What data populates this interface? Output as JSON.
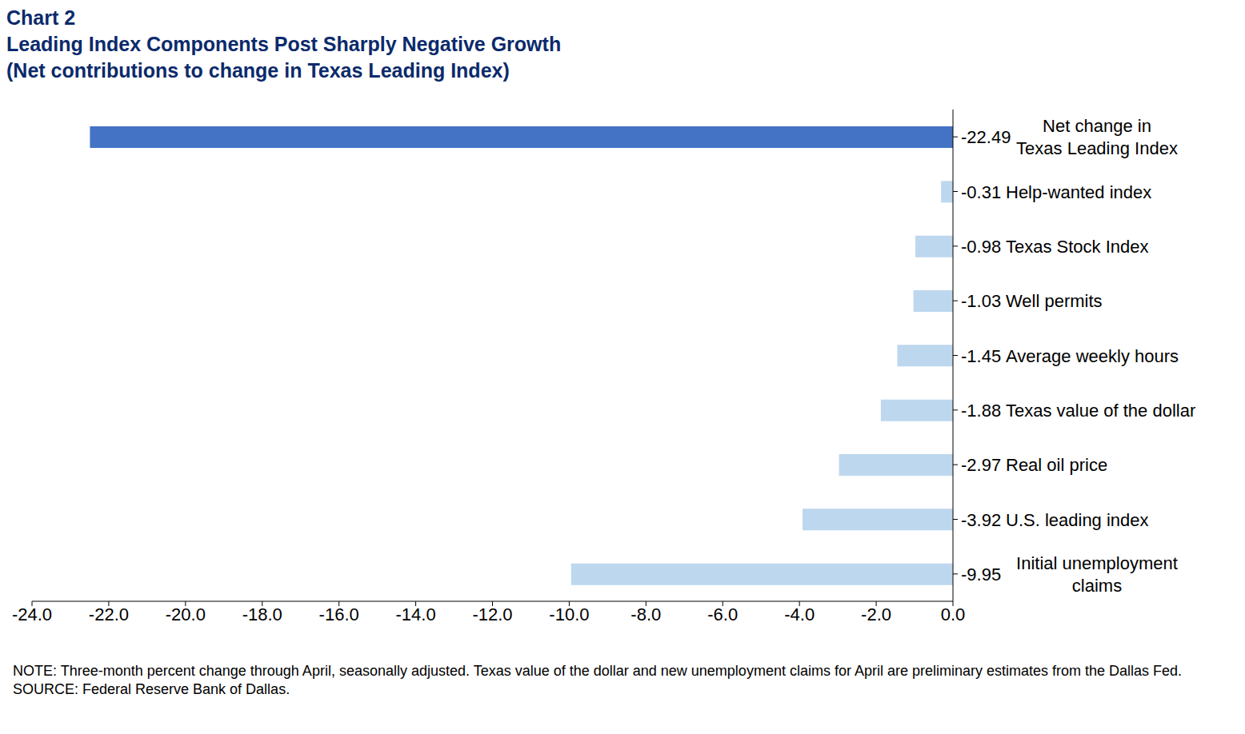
{
  "chart_data": {
    "type": "bar",
    "orientation": "horizontal",
    "chart_label": "Chart 2",
    "title": "Leading Index Components Post Sharply Negative Growth",
    "subtitle": "(Net contributions to change in Texas Leading Index)",
    "categories": [
      "Net change in\nTexas Leading Index",
      "Help-wanted index",
      "Texas Stock Index",
      "Well permits",
      "Average weekly hours",
      "Texas value of the dollar",
      "Real oil price",
      "U.S. leading index",
      "Initial unemployment\nclaims"
    ],
    "values": [
      -22.49,
      -0.31,
      -0.98,
      -1.03,
      -1.45,
      -1.88,
      -2.97,
      -3.92,
      -9.95
    ],
    "colors": [
      "#4472c4",
      "#bdd7ee",
      "#bdd7ee",
      "#bdd7ee",
      "#bdd7ee",
      "#bdd7ee",
      "#bdd7ee",
      "#bdd7ee",
      "#bdd7ee"
    ],
    "xlim": [
      -24,
      0
    ],
    "xticks": [
      {
        "value": -24,
        "label": "-24.0"
      },
      {
        "value": -22,
        "label": "-22.0"
      },
      {
        "value": -20,
        "label": "-20.0"
      },
      {
        "value": -18,
        "label": "-18.0"
      },
      {
        "value": -16,
        "label": "-16.0"
      },
      {
        "value": -14,
        "label": "-14.0"
      },
      {
        "value": -12,
        "label": "-12.0"
      },
      {
        "value": -10,
        "label": "-10.0"
      },
      {
        "value": -8,
        "label": "-8.0"
      },
      {
        "value": -6,
        "label": "-6.0"
      },
      {
        "value": -4,
        "label": "-4.0"
      },
      {
        "value": -2,
        "label": "-2.0"
      },
      {
        "value": 0,
        "label": "0.0"
      }
    ],
    "grid": false,
    "data_labels": true,
    "notes": [
      "NOTE: Three-month percent change through April, seasonally adjusted. Texas value of the dollar and new unemployment claims for April are preliminary estimates from the Dallas Fed.",
      "SOURCE: Federal Reserve Bank of Dallas."
    ]
  }
}
